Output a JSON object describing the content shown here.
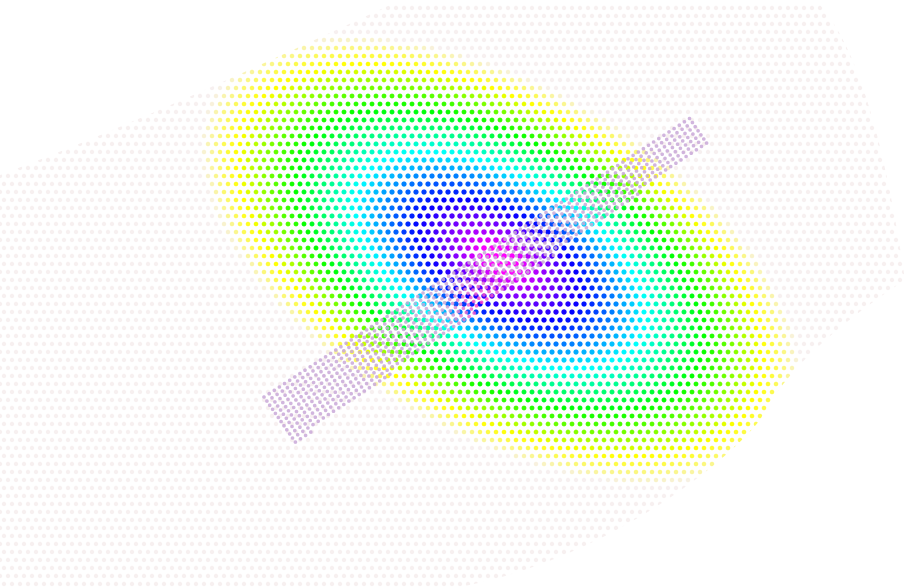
{
  "scene": {
    "background": "#ffffff",
    "description_colormap": [
      "#f7f0f0",
      "#ffff00",
      "#00ff00",
      "#00ffff",
      "#0000ff",
      "#ff00ff"
    ],
    "dot_color_far": "#f5eded",
    "body_dot_color": "#c9a8d8",
    "peak_color": "#ff33cc"
  }
}
